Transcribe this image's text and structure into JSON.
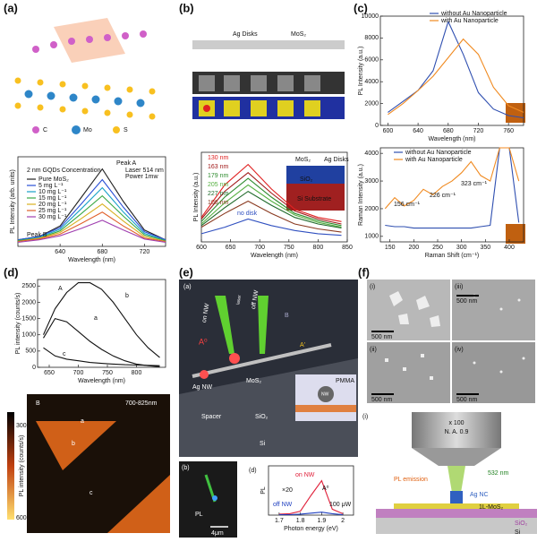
{
  "chart_data": [
    {
      "type": "line",
      "xlabel": "Wavelength (nm)",
      "ylabel": "PL Intensity (arb. units)",
      "x": [
        600,
        620,
        640,
        660,
        680,
        700,
        720,
        740
      ],
      "xlim": [
        600,
        740
      ],
      "xticks": [
        640,
        680,
        720
      ],
      "ylim": [
        0,
        110
      ],
      "legend_title": "2 nm GQDs Concentration",
      "annotations": [
        "Peak A",
        "Peak B",
        "Laser 514 nm",
        "Power 1mw"
      ],
      "series": [
        {
          "name": "Pure MoS₂",
          "color": "#222222",
          "values": [
            8,
            12,
            25,
            60,
            95,
            55,
            20,
            8
          ]
        },
        {
          "name": "5 mg L⁻¹",
          "color": "#2a4fd6",
          "values": [
            8,
            12,
            23,
            52,
            82,
            48,
            18,
            8
          ]
        },
        {
          "name": "10 mg L⁻¹",
          "color": "#17a0c8",
          "values": [
            7,
            11,
            21,
            46,
            72,
            42,
            16,
            7
          ]
        },
        {
          "name": "15 mg L⁻¹",
          "color": "#3aa845",
          "values": [
            7,
            10,
            19,
            40,
            62,
            37,
            14,
            7
          ]
        },
        {
          "name": "20 mg L⁻¹",
          "color": "#d8b020",
          "values": [
            6,
            10,
            17,
            34,
            52,
            31,
            12,
            6
          ]
        },
        {
          "name": "25 mg L⁻¹",
          "color": "#e0602a",
          "values": [
            6,
            9,
            15,
            28,
            42,
            25,
            10,
            6
          ]
        },
        {
          "name": "30 mg L⁻¹",
          "color": "#a040b0",
          "values": [
            5,
            8,
            13,
            22,
            32,
            20,
            9,
            5
          ]
        }
      ]
    },
    {
      "type": "line",
      "xlabel": "Wavelength (nm)",
      "ylabel": "PL  Intensity (a.u.)",
      "x": [
        600,
        640,
        680,
        720,
        760,
        800,
        840
      ],
      "xlim": [
        600,
        850
      ],
      "xticks": [
        600,
        650,
        700,
        750,
        800,
        850
      ],
      "ylim": [
        0,
        110
      ],
      "annotations": [
        "MoS₂",
        "Ag Disks",
        "SiO₂",
        "Si Substrate"
      ],
      "series": [
        {
          "name": "130 nm",
          "color": "#e02020",
          "values": [
            30,
            70,
            95,
            65,
            40,
            30,
            25
          ]
        },
        {
          "name": "163 nm",
          "color": "#a01818",
          "values": [
            28,
            62,
            85,
            60,
            38,
            28,
            22
          ]
        },
        {
          "name": "179 nm",
          "color": "#2e8b2e",
          "values": [
            25,
            55,
            78,
            55,
            35,
            26,
            20
          ]
        },
        {
          "name": "205 nm",
          "color": "#55b040",
          "values": [
            22,
            48,
            70,
            50,
            33,
            24,
            18
          ]
        },
        {
          "name": "227 nm",
          "color": "#1f6a2a",
          "values": [
            20,
            42,
            62,
            45,
            30,
            22,
            17
          ]
        },
        {
          "name": "106 nm",
          "color": "#8a3a20",
          "values": [
            18,
            35,
            50,
            35,
            22,
            16,
            12
          ]
        },
        {
          "name": "no disk",
          "color": "#3050c0",
          "values": [
            10,
            18,
            28,
            20,
            14,
            10,
            8
          ]
        }
      ]
    },
    {
      "type": "line",
      "xlabel": "Wavelength (nm)",
      "ylabel": "PL Intensity (a.u.)",
      "x": [
        600,
        620,
        640,
        660,
        680,
        700,
        720,
        740,
        760,
        780
      ],
      "xlim": [
        590,
        780
      ],
      "xticks": [
        600,
        640,
        680,
        720,
        760
      ],
      "ylim": [
        0,
        10000
      ],
      "yticks": [
        0,
        2000,
        4000,
        6000,
        8000,
        10000
      ],
      "series": [
        {
          "name": "without Au Nanoparticle",
          "color": "#2f4fb0",
          "values": [
            1200,
            2200,
            3200,
            5000,
            9500,
            6500,
            3000,
            1500,
            900,
            700
          ]
        },
        {
          "name": "with Au Nanoparticle",
          "color": "#f08a20",
          "values": [
            1000,
            2000,
            3200,
            4500,
            6200,
            7900,
            6500,
            3500,
            1800,
            1200
          ]
        }
      ]
    },
    {
      "type": "line",
      "xlabel": "Raman Shift (cm⁻¹)",
      "ylabel": "Raman Intensity (a.u.)",
      "x": [
        140,
        160,
        180,
        200,
        220,
        240,
        260,
        280,
        300,
        320,
        340,
        360,
        380,
        400,
        420
      ],
      "xlim": [
        130,
        430
      ],
      "xticks": [
        150,
        200,
        250,
        300,
        350,
        400
      ],
      "ylim": [
        800,
        4200
      ],
      "yticks": [
        1000,
        2000,
        3000,
        4000
      ],
      "annotations": [
        "156 cm⁻¹",
        "226 cm⁻¹",
        "323 cm⁻¹"
      ],
      "series": [
        {
          "name": "without Au Nanoparticle",
          "color": "#2f4fb0",
          "values": [
            1400,
            1350,
            1350,
            1300,
            1300,
            1300,
            1300,
            1300,
            1300,
            1300,
            1350,
            1400,
            4200,
            4200,
            1500
          ]
        },
        {
          "name": "with Au Nanoparticle",
          "color": "#f08a20",
          "values": [
            2000,
            2400,
            2100,
            2300,
            2700,
            2500,
            2800,
            3000,
            3300,
            3700,
            3200,
            3000,
            4200,
            4200,
            3000
          ]
        }
      ]
    },
    {
      "type": "line",
      "xlabel": "Wavelength (nm)",
      "ylabel": "PL intensity (counts/s)",
      "x": [
        640,
        660,
        680,
        700,
        720,
        740,
        760,
        780,
        800,
        820,
        840
      ],
      "xlim": [
        630,
        850
      ],
      "xticks": [
        650,
        700,
        750,
        800
      ],
      "ylim": [
        0,
        2700
      ],
      "yticks": [
        0,
        500,
        1000,
        1500,
        2000,
        2500
      ],
      "annotations": [
        "A"
      ],
      "series": [
        {
          "name": "a",
          "color": "#111111",
          "values": [
            900,
            1500,
            1400,
            1100,
            800,
            550,
            350,
            200,
            100,
            50,
            20
          ]
        },
        {
          "name": "b",
          "color": "#111111",
          "values": [
            1000,
            1800,
            2300,
            2600,
            2600,
            2400,
            2000,
            1500,
            1000,
            600,
            300
          ]
        },
        {
          "name": "c",
          "color": "#111111",
          "values": [
            600,
            350,
            250,
            200,
            150,
            120,
            100,
            80,
            70,
            60,
            50
          ]
        }
      ]
    },
    {
      "type": "line",
      "xlabel": "Photon energy (eV)",
      "ylabel": "PL",
      "x": [
        1.7,
        1.75,
        1.8,
        1.85,
        1.9,
        1.95,
        2.0
      ],
      "xlim": [
        1.65,
        2.05
      ],
      "xticks": [
        1.7,
        1.8,
        1.9,
        2.0
      ],
      "ylim": [
        0,
        100
      ],
      "annotations": [
        "×20",
        "A⁰",
        "100 μW",
        "(d)"
      ],
      "series": [
        {
          "name": "on NW",
          "color": "#e0203a",
          "values": [
            2,
            3,
            8,
            40,
            70,
            12,
            3
          ]
        },
        {
          "name": "off NW",
          "color": "#2040c0",
          "values": [
            1,
            1,
            2,
            4,
            6,
            3,
            1
          ]
        }
      ]
    }
  ],
  "panels": {
    "labels": [
      "(a)",
      "(b)",
      "(c)",
      "(d)",
      "(e)",
      "(f)"
    ],
    "a": [
      "C",
      "Mo",
      "S"
    ],
    "b": [
      "Ag Disks",
      "MoS₂"
    ],
    "d": [
      "B",
      "a",
      "b",
      "c",
      "700-825nm",
      "PL intensity (counts/s)",
      "300",
      "600"
    ],
    "e": [
      "(a)",
      "on NW",
      "off NW",
      "A⁰",
      "B",
      "A'",
      "Ag NW",
      "MoS₂",
      "Spacer",
      "SiO₂",
      "Si",
      "PMMA",
      "NW",
      "(b)",
      "PL",
      "4μm",
      "laser"
    ],
    "f": [
      "(i)",
      "(iii)",
      "(ii)",
      "(iv)",
      "500 nm",
      "(i)",
      "x 100",
      "N. A. 0.9",
      "532 nm",
      "PL emission",
      "Ag NC",
      "1L-MoS₂",
      "SiO₂",
      "Si"
    ]
  }
}
